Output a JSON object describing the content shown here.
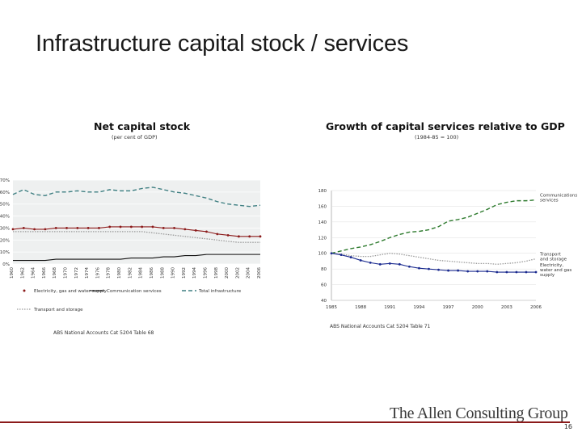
{
  "slide": {
    "title": "Infrastructure capital stock / services",
    "brand": "The Allen Consulting Group",
    "page_number": "16"
  },
  "colors": {
    "brand_red": "#8b1a1a",
    "teal": "#3f7f82",
    "maroon": "#8b1a1a",
    "gray": "#9a9a9a",
    "green": "#2d7a2d",
    "navy": "#1a2a8f",
    "black": "#111111"
  },
  "chart_data": [
    {
      "type": "line",
      "title": "Net capital stock",
      "subtitle": "(per cent of GDP)",
      "source": "ABS National Accounts Cat 5204 Table 68",
      "ylim": [
        0,
        70
      ],
      "yticks": [
        "0%",
        "10%",
        "20%",
        "30%",
        "40%",
        "50%",
        "60%",
        "70%"
      ],
      "x": [
        1960,
        1962,
        1964,
        1966,
        1968,
        1970,
        1972,
        1974,
        1976,
        1978,
        1980,
        1982,
        1984,
        1986,
        1988,
        1990,
        1992,
        1994,
        1996,
        1998,
        2000,
        2002,
        2004,
        2006
      ],
      "xticks": [
        "1960",
        "1962",
        "1964",
        "1966",
        "1968",
        "1970",
        "1972",
        "1974",
        "1976",
        "1978",
        "1980",
        "1982",
        "1984",
        "1986",
        "1988",
        "1990",
        "1992",
        "1994",
        "1996",
        "1998",
        "2000",
        "2002",
        "2004",
        "2006"
      ],
      "series": [
        {
          "name": "Total infrastructure",
          "style": "dashed",
          "color": "#3f7f82",
          "values": [
            58,
            62,
            58,
            57,
            60,
            60,
            61,
            60,
            60,
            62,
            61,
            61,
            63,
            64,
            62,
            60,
            59,
            57,
            55,
            52,
            50,
            49,
            48,
            49
          ]
        },
        {
          "name": "Electricity, gas and water supply",
          "style": "marker",
          "color": "#8b1a1a",
          "values": [
            29,
            30,
            29,
            29,
            30,
            30,
            30,
            30,
            30,
            31,
            31,
            31,
            31,
            31,
            30,
            30,
            29,
            28,
            27,
            25,
            24,
            23,
            23,
            23
          ]
        },
        {
          "name": "Transport and storage",
          "style": "dotted",
          "color": "#9a9a9a",
          "values": [
            27,
            27,
            27,
            27,
            27,
            27,
            27,
            27,
            27,
            27,
            27,
            27,
            27,
            26,
            25,
            24,
            23,
            22,
            21,
            20,
            19,
            18,
            18,
            18
          ]
        },
        {
          "name": "Communication services",
          "style": "solid",
          "color": "#111111",
          "values": [
            3,
            3,
            3,
            3,
            4,
            4,
            4,
            4,
            4,
            4,
            4,
            5,
            5,
            5,
            6,
            6,
            7,
            7,
            8,
            8,
            8,
            8,
            8,
            8
          ]
        }
      ],
      "legend": [
        "Electricity, gas and water supply",
        "Communication services",
        "Total infrastructure",
        "Transport and storage"
      ]
    },
    {
      "type": "line",
      "title": "Growth of capital services relative to GDP",
      "subtitle": "(1984-85 = 100)",
      "source": "ABS National Accounts Cat 5204 Table 71",
      "ylim": [
        40,
        180
      ],
      "yticks": [
        "40",
        "60",
        "80",
        "100",
        "120",
        "140",
        "160",
        "180"
      ],
      "x": [
        1985,
        1986,
        1987,
        1988,
        1989,
        1990,
        1991,
        1992,
        1993,
        1994,
        1995,
        1996,
        1997,
        1998,
        1999,
        2000,
        2001,
        2002,
        2003,
        2004,
        2005,
        2006
      ],
      "xticks": [
        "1985",
        "1988",
        "1991",
        "1994",
        "1997",
        "2000",
        "2003",
        "2006"
      ],
      "series": [
        {
          "name": "Communications services",
          "style": "dashed",
          "color": "#2d7a2d",
          "values": [
            100,
            103,
            106,
            108,
            111,
            115,
            120,
            124,
            127,
            128,
            130,
            134,
            141,
            143,
            146,
            151,
            156,
            162,
            165,
            167,
            167,
            168
          ]
        },
        {
          "name": "Transport and storage",
          "style": "dotted",
          "color": "#9a9a9a",
          "values": [
            100,
            99,
            97,
            96,
            96,
            98,
            100,
            99,
            97,
            95,
            93,
            91,
            90,
            89,
            88,
            87,
            87,
            86,
            87,
            88,
            90,
            93
          ]
        },
        {
          "name": "Electricity, water and gas supply",
          "style": "marker",
          "color": "#1a2a8f",
          "values": [
            100,
            98,
            95,
            91,
            88,
            86,
            87,
            86,
            83,
            81,
            80,
            79,
            78,
            78,
            77,
            77,
            77,
            76,
            76,
            76,
            76,
            76
          ]
        }
      ],
      "labels": [
        {
          "series": 0,
          "lines": [
            "Communications",
            "services"
          ]
        },
        {
          "series": 1,
          "lines": [
            "Transport",
            "and storage"
          ]
        },
        {
          "series": 2,
          "lines": [
            "Electricity,",
            "water and gas",
            "supply"
          ]
        }
      ]
    }
  ]
}
